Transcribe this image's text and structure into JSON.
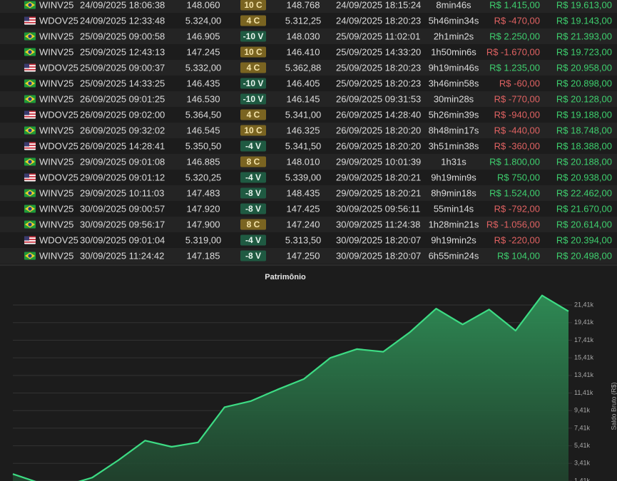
{
  "table": {
    "rows": [
      {
        "flag": "br",
        "cells": [
          "WINV25",
          "24/09/2025 18:06:38",
          "148.060",
          "10 C",
          "148.768",
          "24/09/2025 18:15:24",
          "8min46s",
          "R$ 1.415,00",
          "R$ 19.613,00"
        ]
      },
      {
        "flag": "us",
        "cells": [
          "WDOV25",
          "24/09/2025 12:33:48",
          "5.324,00",
          "4 C",
          "5.312,25",
          "24/09/2025 18:20:23",
          "5h46min34s",
          "R$ -470,00",
          "R$ 19.143,00"
        ]
      },
      {
        "flag": "br",
        "cells": [
          "WINV25",
          "25/09/2025 09:00:58",
          "146.905",
          "-10 V",
          "148.030",
          "25/09/2025 11:02:01",
          "2h1min2s",
          "R$ 2.250,00",
          "R$ 21.393,00"
        ]
      },
      {
        "flag": "br",
        "cells": [
          "WINV25",
          "25/09/2025 12:43:13",
          "147.245",
          "10 C",
          "146.410",
          "25/09/2025 14:33:20",
          "1h50min6s",
          "R$ -1.670,00",
          "R$ 19.723,00"
        ]
      },
      {
        "flag": "us",
        "cells": [
          "WDOV25",
          "25/09/2025 09:00:37",
          "5.332,00",
          "4 C",
          "5.362,88",
          "25/09/2025 18:20:23",
          "9h19min46s",
          "R$ 1.235,00",
          "R$ 20.958,00"
        ]
      },
      {
        "flag": "br",
        "cells": [
          "WINV25",
          "25/09/2025 14:33:25",
          "146.435",
          "-10 V",
          "146.405",
          "25/09/2025 18:20:23",
          "3h46min58s",
          "R$ -60,00",
          "R$ 20.898,00"
        ]
      },
      {
        "flag": "br",
        "cells": [
          "WINV25",
          "26/09/2025 09:01:25",
          "146.530",
          "-10 V",
          "146.145",
          "26/09/2025 09:31:53",
          "30min28s",
          "R$ -770,00",
          "R$ 20.128,00"
        ]
      },
      {
        "flag": "us",
        "cells": [
          "WDOV25",
          "26/09/2025 09:02:00",
          "5.364,50",
          "4 C",
          "5.341,00",
          "26/09/2025 14:28:40",
          "5h26min39s",
          "R$ -940,00",
          "R$ 19.188,00"
        ]
      },
      {
        "flag": "br",
        "cells": [
          "WINV25",
          "26/09/2025 09:32:02",
          "146.545",
          "10 C",
          "146.325",
          "26/09/2025 18:20:20",
          "8h48min17s",
          "R$ -440,00",
          "R$ 18.748,00"
        ]
      },
      {
        "flag": "us",
        "cells": [
          "WDOV25",
          "26/09/2025 14:28:41",
          "5.350,50",
          "-4 V",
          "5.341,50",
          "26/09/2025 18:20:20",
          "3h51min38s",
          "R$ -360,00",
          "R$ 18.388,00"
        ]
      },
      {
        "flag": "br",
        "cells": [
          "WINV25",
          "29/09/2025 09:01:08",
          "146.885",
          "8 C",
          "148.010",
          "29/09/2025 10:01:39",
          "1h31s",
          "R$ 1.800,00",
          "R$ 20.188,00"
        ]
      },
      {
        "flag": "us",
        "cells": [
          "WDOV25",
          "29/09/2025 09:01:12",
          "5.320,25",
          "-4 V",
          "5.339,00",
          "29/09/2025 18:20:21",
          "9h19min9s",
          "R$ 750,00",
          "R$ 20.938,00"
        ]
      },
      {
        "flag": "br",
        "cells": [
          "WINV25",
          "29/09/2025 10:11:03",
          "147.483",
          "-8 V",
          "148.435",
          "29/09/2025 18:20:21",
          "8h9min18s",
          "R$ 1.524,00",
          "R$ 22.462,00"
        ]
      },
      {
        "flag": "br",
        "cells": [
          "WINV25",
          "30/09/2025 09:00:57",
          "147.920",
          "-8 V",
          "147.425",
          "30/09/2025 09:56:11",
          "55min14s",
          "R$ -792,00",
          "R$ 21.670,00"
        ]
      },
      {
        "flag": "br",
        "cells": [
          "WINV25",
          "30/09/2025 09:56:17",
          "147.900",
          "8 C",
          "147.240",
          "30/09/2025 11:24:38",
          "1h28min21s",
          "R$ -1.056,00",
          "R$ 20.614,00"
        ]
      },
      {
        "flag": "us",
        "cells": [
          "WDOV25",
          "30/09/2025 09:01:04",
          "5.319,00",
          "-4 V",
          "5.313,50",
          "30/09/2025 18:20:07",
          "9h19min2s",
          "R$ -220,00",
          "R$ 20.394,00"
        ]
      },
      {
        "flag": "br",
        "cells": [
          "WINV25",
          "30/09/2025 11:24:42",
          "147.185",
          "-8 V",
          "147.250",
          "30/09/2025 18:20:07",
          "6h55min24s",
          "R$ 104,00",
          "R$ 20.498,00"
        ]
      }
    ]
  },
  "chart_data": {
    "type": "area",
    "title": "Patrimônio",
    "y_label": "Saldo Bruto (R$)",
    "color": "#3ddc84",
    "values": [
      2200,
      1200,
      900,
      1800,
      3800,
      6000,
      5300,
      5800,
      9800,
      10500,
      11800,
      13000,
      15400,
      16400,
      16100,
      18300,
      21000,
      19200,
      20900,
      18500,
      22500,
      20700
    ],
    "ylim": [
      1410,
      23680
    ],
    "yticks": [
      {
        "value": 1410,
        "label": "1,41k"
      },
      {
        "value": 3410,
        "label": "3,41k"
      },
      {
        "value": 5410,
        "label": "5,41k"
      },
      {
        "value": 7410,
        "label": "7,41k"
      },
      {
        "value": 9410,
        "label": "9,41k"
      },
      {
        "value": 11410,
        "label": "11,41k"
      },
      {
        "value": 13410,
        "label": "13,41k"
      },
      {
        "value": 15410,
        "label": "15,41k"
      },
      {
        "value": 17410,
        "label": "17,41k"
      },
      {
        "value": 19410,
        "label": "19,41k"
      },
      {
        "value": 21410,
        "label": "21,41k"
      }
    ],
    "grid": true
  }
}
